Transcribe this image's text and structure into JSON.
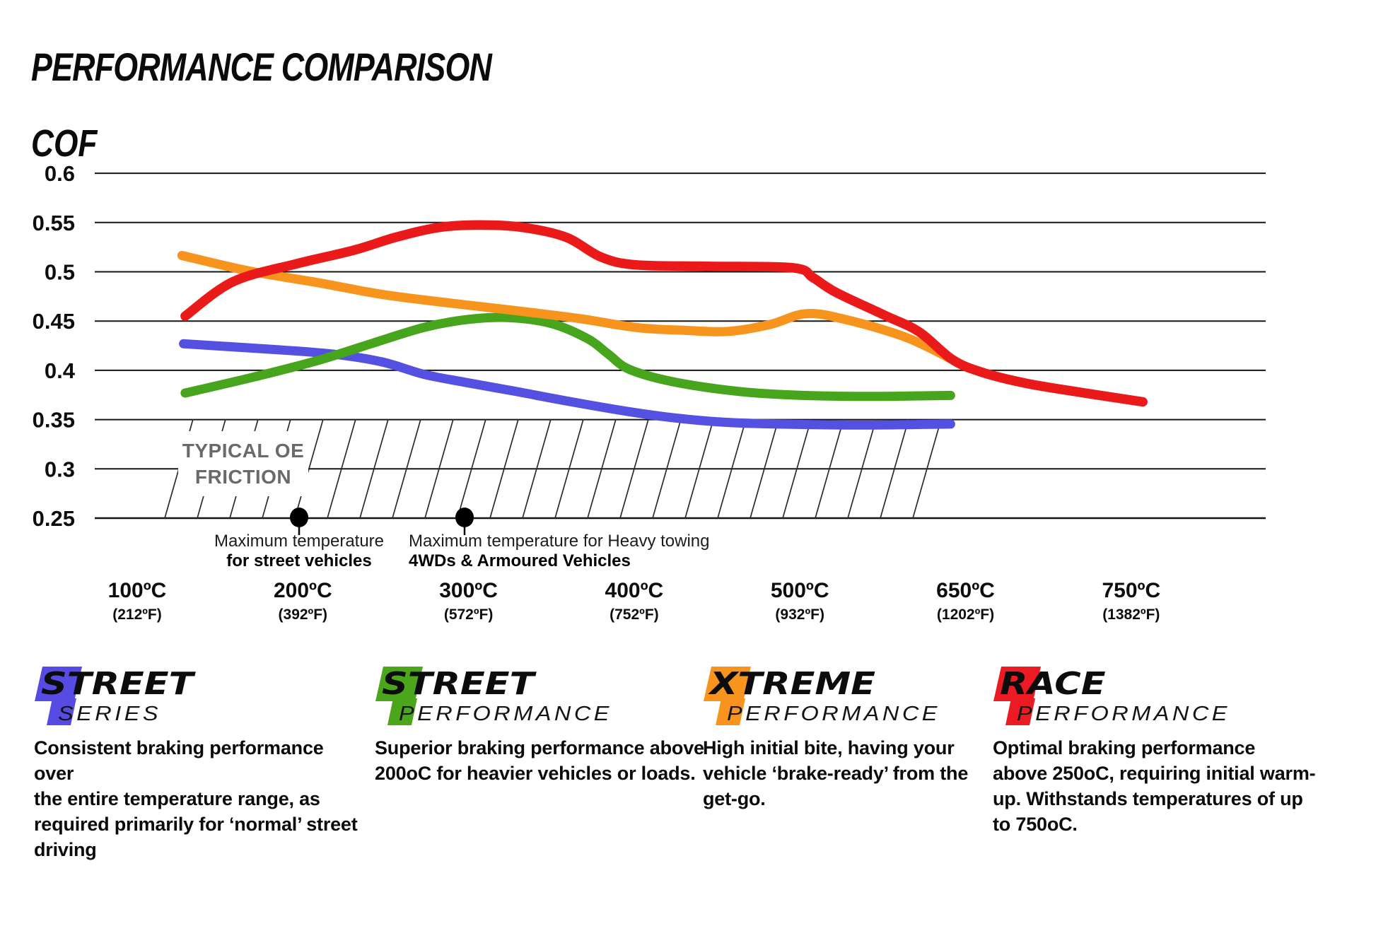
{
  "title": "PERFORMANCE COMPARISON",
  "y_axis_label": "COF",
  "chart_data": {
    "type": "line",
    "title": "PERFORMANCE COMPARISON",
    "ylabel": "COF",
    "grid": "horizontal",
    "ylim": [
      0.25,
      0.6
    ],
    "y_ticks": [
      0.6,
      0.55,
      0.5,
      0.45,
      0.4,
      0.35,
      0.3,
      0.25
    ],
    "x_values_c": [
      100,
      200,
      300,
      400,
      500,
      650,
      750
    ],
    "x_categories_c": [
      "100ºC",
      "200ºC",
      "300ºC",
      "400ºC",
      "500ºC",
      "650ºC",
      "750ºC"
    ],
    "x_categories_f": [
      "(212ºF)",
      "(392ºF)",
      "(572ºF)",
      "(752ºF)",
      "(932ºF)",
      "(1202ºF)",
      "(1382ºF)"
    ],
    "series": [
      {
        "name": "Street Series",
        "color": "#5451E2",
        "width": 13,
        "points_slot_cof": [
          [
            0.28,
            0.427
          ],
          [
            0.79,
            0.4215
          ],
          [
            1.18,
            0.4165
          ],
          [
            1.48,
            0.4085
          ],
          [
            1.73,
            0.396
          ],
          [
            1.99,
            0.3875
          ],
          [
            2.29,
            0.3785
          ],
          [
            2.59,
            0.369
          ],
          [
            2.97,
            0.358
          ],
          [
            3.23,
            0.352
          ],
          [
            3.53,
            0.3475
          ],
          [
            3.87,
            0.3455
          ],
          [
            4.38,
            0.3445
          ],
          [
            4.91,
            0.3455
          ]
        ]
      },
      {
        "name": "Street Performance",
        "color": "#47A41D",
        "width": 13,
        "points_slot_cof": [
          [
            0.29,
            0.377
          ],
          [
            0.71,
            0.3935
          ],
          [
            1.09,
            0.41
          ],
          [
            1.43,
            0.428
          ],
          [
            1.73,
            0.4435
          ],
          [
            1.99,
            0.4515
          ],
          [
            2.24,
            0.4535
          ],
          [
            2.5,
            0.4475
          ],
          [
            2.72,
            0.432
          ],
          [
            2.84,
            0.417
          ],
          [
            2.97,
            0.401
          ],
          [
            3.23,
            0.3885
          ],
          [
            3.61,
            0.379
          ],
          [
            3.95,
            0.375
          ],
          [
            4.42,
            0.3735
          ],
          [
            4.91,
            0.3745
          ]
        ]
      },
      {
        "name": "Xtreme Performance",
        "color": "#F7941D",
        "width": 13,
        "points_slot_cof": [
          [
            0.27,
            0.5165
          ],
          [
            0.67,
            0.501
          ],
          [
            1.09,
            0.489
          ],
          [
            1.48,
            0.477
          ],
          [
            1.9,
            0.468
          ],
          [
            2.24,
            0.4615
          ],
          [
            2.67,
            0.4525
          ],
          [
            3.01,
            0.4435
          ],
          [
            3.31,
            0.4405
          ],
          [
            3.57,
            0.4395
          ],
          [
            3.82,
            0.4465
          ],
          [
            4.04,
            0.4575
          ],
          [
            4.29,
            0.451
          ],
          [
            4.64,
            0.4335
          ],
          [
            4.92,
            0.411
          ]
        ]
      },
      {
        "name": "Race Performance",
        "color": "#EB1A1A",
        "width": 13.5,
        "points_slot_cof": [
          [
            0.29,
            0.455
          ],
          [
            0.58,
            0.49
          ],
          [
            0.96,
            0.508
          ],
          [
            1.31,
            0.522
          ],
          [
            1.56,
            0.535
          ],
          [
            1.82,
            0.545
          ],
          [
            2.07,
            0.5475
          ],
          [
            2.33,
            0.545
          ],
          [
            2.59,
            0.535
          ],
          [
            2.8,
            0.515
          ],
          [
            3.01,
            0.507
          ],
          [
            3.44,
            0.5055
          ],
          [
            3.96,
            0.504
          ],
          [
            4.08,
            0.494
          ],
          [
            4.22,
            0.479
          ],
          [
            4.51,
            0.456
          ],
          [
            4.72,
            0.439
          ],
          [
            4.92,
            0.411
          ],
          [
            5.1,
            0.398
          ],
          [
            5.36,
            0.387
          ],
          [
            5.7,
            0.3775
          ],
          [
            6.07,
            0.368
          ]
        ]
      }
    ],
    "oe_band": {
      "label_line1": "TYPICAL OE",
      "label_line2": "FRICTION",
      "cof_range": [
        0.25,
        0.35
      ]
    }
  },
  "annotations": {
    "a1_line1": "Maximum temperature",
    "a1_line2": "for street vehicles",
    "a2_line1": "Maximum temperature for Heavy towing",
    "a2_line2": "4WDs & Armoured Vehicles"
  },
  "legend": [
    {
      "word1": "STREET",
      "word2": "SERIES",
      "color": "#564BE3",
      "description": "Consistent braking performance over\nthe entire temperature range, as\nrequired primarily for ‘normal’ street\ndriving"
    },
    {
      "word1": "STREET",
      "word2": "PERFORMANCE",
      "color": "#4CA61B",
      "description": "Superior braking performance above\n200oC for heavier vehicles or loads."
    },
    {
      "word1": "XTREME",
      "word2": "PERFORMANCE",
      "color": "#F7941D",
      "description": "High initial bite, having your\nvehicle ‘brake-ready’ from the\nget-go."
    },
    {
      "word1": "RACE",
      "word2": "PERFORMANCE",
      "color": "#EC1B23",
      "description": "Optimal braking performance\nabove 250oC, requiring initial warm-\nup. Withstands temperatures of up\nto 750oC."
    }
  ]
}
